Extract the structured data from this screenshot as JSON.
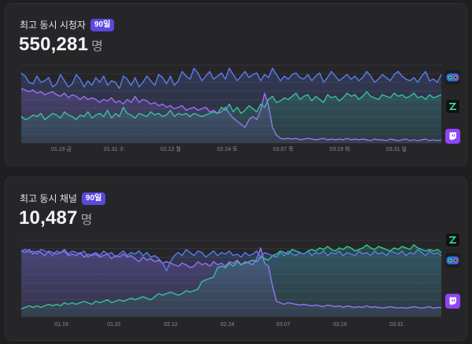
{
  "panels": [
    {
      "title": "최고 동시 시청자",
      "badge": "90일",
      "value": "550,281",
      "unit": "명",
      "icons": [
        "youtube-icon",
        "chzzk-icon",
        "twitch-icon"
      ]
    },
    {
      "title": "최고 동시 채널",
      "badge": "90일",
      "value": "10,487",
      "unit": "명",
      "icons": [
        "chzzk-icon",
        "youtube-icon",
        "twitch-icon"
      ]
    }
  ],
  "colors": {
    "youtube": "#5c7cf0",
    "chzzk": "#2fcf8f",
    "twitch": "#a86cf5",
    "badge": "#5a48e0"
  },
  "chart_data": [
    {
      "type": "line",
      "xticks": [
        "01.19 금",
        "01.31 수",
        "02.12 월",
        "02.24 토",
        "03.07 목",
        "03.19 화",
        "03.31 일"
      ],
      "series": [
        {
          "key": "youtube",
          "values": [
            0.9,
            0.86,
            0.78,
            0.76,
            0.86,
            0.78,
            0.8,
            0.84,
            0.72,
            0.76,
            0.88,
            0.8,
            0.72,
            0.76,
            0.88,
            0.82,
            0.72,
            0.8,
            0.74,
            0.84,
            0.78,
            0.86,
            0.74,
            0.8,
            0.78,
            0.7,
            0.86,
            0.82,
            0.74,
            0.84,
            0.72,
            0.78,
            0.86,
            0.8,
            0.74,
            0.88,
            0.84,
            0.76,
            0.86,
            0.74,
            0.8,
            0.92,
            0.86,
            0.82,
            0.96,
            0.9,
            0.8,
            0.86,
            0.92,
            0.82,
            0.86,
            0.9,
            0.82,
            0.96,
            0.88,
            0.8,
            0.86,
            0.92,
            0.84,
            0.88,
            0.9,
            0.8,
            0.88,
            0.84,
            0.96,
            0.88,
            0.8,
            0.86,
            0.82,
            0.88,
            0.9,
            0.84,
            0.82,
            0.88,
            0.8,
            0.86,
            0.9,
            0.78,
            0.84,
            0.92,
            0.86,
            0.8,
            0.84,
            0.88,
            0.82,
            0.86,
            0.8,
            0.84,
            0.92,
            0.86,
            0.78,
            0.82,
            0.88,
            0.84,
            0.8,
            0.88,
            0.92,
            0.86,
            0.82,
            0.8,
            0.84,
            0.78,
            0.86,
            0.92,
            0.8,
            0.82,
            0.78,
            0.88
          ]
        },
        {
          "key": "chzzk",
          "values": [
            0.34,
            0.3,
            0.32,
            0.36,
            0.34,
            0.38,
            0.3,
            0.34,
            0.38,
            0.36,
            0.32,
            0.4,
            0.36,
            0.34,
            0.3,
            0.36,
            0.34,
            0.4,
            0.32,
            0.36,
            0.38,
            0.34,
            0.42,
            0.32,
            0.38,
            0.34,
            0.46,
            0.38,
            0.36,
            0.32,
            0.38,
            0.36,
            0.34,
            0.4,
            0.36,
            0.38,
            0.34,
            0.36,
            0.42,
            0.34,
            0.38,
            0.36,
            0.38,
            0.34,
            0.38,
            0.36,
            0.34,
            0.36,
            0.38,
            0.4,
            0.38,
            0.46,
            0.42,
            0.5,
            0.4,
            0.46,
            0.38,
            0.42,
            0.48,
            0.44,
            0.4,
            0.5,
            0.46,
            0.56,
            0.6,
            0.52,
            0.54,
            0.58,
            0.56,
            0.6,
            0.64,
            0.56,
            0.6,
            0.62,
            0.54,
            0.6,
            0.56,
            0.52,
            0.62,
            0.58,
            0.6,
            0.54,
            0.58,
            0.64,
            0.6,
            0.62,
            0.56,
            0.6,
            0.66,
            0.6,
            0.58,
            0.56,
            0.62,
            0.6,
            0.58,
            0.64,
            0.6,
            0.62,
            0.58,
            0.6,
            0.64,
            0.58,
            0.6,
            0.56,
            0.62,
            0.58,
            0.6,
            0.62
          ]
        },
        {
          "key": "twitch",
          "values": [
            0.7,
            0.68,
            0.66,
            0.68,
            0.64,
            0.66,
            0.62,
            0.64,
            0.66,
            0.62,
            0.6,
            0.64,
            0.58,
            0.62,
            0.6,
            0.56,
            0.6,
            0.56,
            0.58,
            0.56,
            0.52,
            0.56,
            0.54,
            0.58,
            0.52,
            0.54,
            0.5,
            0.56,
            0.52,
            0.6,
            0.52,
            0.56,
            0.54,
            0.5,
            0.52,
            0.48,
            0.5,
            0.46,
            0.48,
            0.44,
            0.46,
            0.48,
            0.42,
            0.44,
            0.46,
            0.42,
            0.44,
            0.46,
            0.4,
            0.42,
            0.38,
            0.4,
            0.46,
            0.38,
            0.32,
            0.28,
            0.24,
            0.2,
            0.3,
            0.34,
            0.3,
            0.42,
            0.64,
            0.48,
            0.2,
            0.1,
            0.06,
            0.05,
            0.06,
            0.05,
            0.06,
            0.04,
            0.05,
            0.06,
            0.05,
            0.04,
            0.05,
            0.06,
            0.04,
            0.05,
            0.04,
            0.05,
            0.04,
            0.06,
            0.04,
            0.05,
            0.04,
            0.05,
            0.04,
            0.03,
            0.05,
            0.04,
            0.04,
            0.03,
            0.05,
            0.04,
            0.03,
            0.04,
            0.05,
            0.03,
            0.04,
            0.03,
            0.04,
            0.05,
            0.03,
            0.04,
            0.03,
            0.04
          ]
        }
      ]
    },
    {
      "type": "line",
      "xticks": [
        "01.19",
        "01.31",
        "02.12",
        "02.24",
        "03.07",
        "03.19",
        "03.31"
      ],
      "series": [
        {
          "key": "youtube",
          "values": [
            0.86,
            0.88,
            0.84,
            0.86,
            0.82,
            0.88,
            0.86,
            0.84,
            0.8,
            0.86,
            0.84,
            0.88,
            0.82,
            0.86,
            0.84,
            0.82,
            0.86,
            0.78,
            0.82,
            0.84,
            0.8,
            0.86,
            0.82,
            0.84,
            0.78,
            0.82,
            0.86,
            0.8,
            0.84,
            0.82,
            0.86,
            0.8,
            0.84,
            0.78,
            0.8,
            0.76,
            0.7,
            0.6,
            0.72,
            0.8,
            0.84,
            0.8,
            0.88,
            0.84,
            0.8,
            0.86,
            0.84,
            0.78,
            0.82,
            0.86,
            0.8,
            0.84,
            0.82,
            0.86,
            0.8,
            0.82,
            0.78,
            0.84,
            0.8,
            0.82,
            0.86,
            0.78,
            0.84,
            0.82,
            0.8,
            0.78,
            0.84,
            0.8,
            0.86,
            0.82,
            0.8,
            0.84,
            0.82,
            0.86,
            0.8,
            0.84,
            0.82,
            0.86,
            0.8,
            0.84,
            0.82,
            0.86,
            0.8,
            0.84,
            0.82,
            0.8,
            0.86,
            0.82,
            0.84,
            0.8,
            0.86,
            0.82,
            0.84,
            0.8,
            0.86,
            0.84,
            0.82,
            0.86,
            0.8,
            0.84,
            0.82,
            0.88,
            0.84,
            0.8,
            0.86,
            0.82,
            0.84,
            0.8
          ]
        },
        {
          "key": "chzzk",
          "values": [
            0.1,
            0.12,
            0.14,
            0.12,
            0.14,
            0.12,
            0.14,
            0.16,
            0.14,
            0.16,
            0.14,
            0.18,
            0.16,
            0.18,
            0.16,
            0.18,
            0.2,
            0.18,
            0.16,
            0.2,
            0.18,
            0.2,
            0.22,
            0.18,
            0.2,
            0.22,
            0.2,
            0.22,
            0.24,
            0.22,
            0.24,
            0.26,
            0.24,
            0.22,
            0.26,
            0.3,
            0.28,
            0.3,
            0.32,
            0.3,
            0.28,
            0.3,
            0.34,
            0.32,
            0.34,
            0.36,
            0.46,
            0.48,
            0.5,
            0.52,
            0.64,
            0.66,
            0.64,
            0.7,
            0.66,
            0.72,
            0.68,
            0.7,
            0.72,
            0.74,
            0.72,
            0.78,
            0.76,
            0.74,
            0.8,
            0.82,
            0.86,
            0.84,
            0.82,
            0.88,
            0.86,
            0.84,
            0.82,
            0.86,
            0.88,
            0.86,
            0.9,
            0.88,
            0.92,
            0.88,
            0.86,
            0.9,
            0.88,
            0.92,
            0.9,
            0.86,
            0.88,
            0.9,
            0.94,
            0.9,
            0.88,
            0.92,
            0.9,
            0.88,
            0.86,
            0.9,
            0.88,
            0.92,
            0.9,
            0.88,
            0.94,
            0.9,
            0.88,
            0.86,
            0.88,
            0.86,
            0.88,
            0.84
          ]
        },
        {
          "key": "twitch",
          "values": [
            0.86,
            0.84,
            0.88,
            0.82,
            0.86,
            0.84,
            0.8,
            0.86,
            0.84,
            0.82,
            0.84,
            0.86,
            0.8,
            0.82,
            0.8,
            0.84,
            0.78,
            0.82,
            0.8,
            0.82,
            0.78,
            0.8,
            0.82,
            0.76,
            0.8,
            0.78,
            0.82,
            0.78,
            0.8,
            0.76,
            0.72,
            0.78,
            0.74,
            0.76,
            0.72,
            0.74,
            0.7,
            0.72,
            0.7,
            0.68,
            0.66,
            0.7,
            0.68,
            0.64,
            0.66,
            0.72,
            0.68,
            0.7,
            0.66,
            0.72,
            0.68,
            0.7,
            0.66,
            0.72,
            0.7,
            0.74,
            0.68,
            0.72,
            0.7,
            0.68,
            0.76,
            0.9,
            0.7,
            0.66,
            0.4,
            0.2,
            0.18,
            0.16,
            0.18,
            0.17,
            0.16,
            0.15,
            0.16,
            0.15,
            0.14,
            0.15,
            0.14,
            0.13,
            0.15,
            0.14,
            0.13,
            0.14,
            0.12,
            0.14,
            0.13,
            0.12,
            0.13,
            0.12,
            0.14,
            0.12,
            0.13,
            0.12,
            0.11,
            0.12,
            0.13,
            0.12,
            0.11,
            0.12,
            0.11,
            0.12,
            0.13,
            0.12,
            0.11,
            0.12,
            0.13,
            0.11,
            0.12,
            0.12
          ]
        }
      ]
    }
  ]
}
